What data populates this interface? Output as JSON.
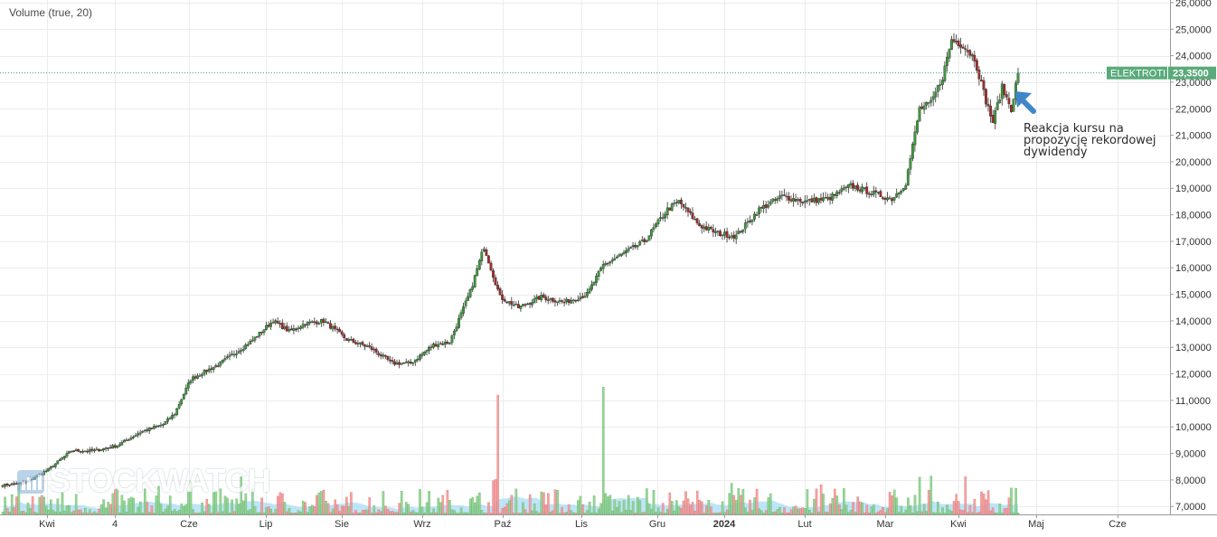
{
  "indicator_label": "Volume (true, 20)",
  "annotation_text": "Reakcja kursu na propozycję rekordowej dywidendy",
  "watermark": "STOCKWATCH",
  "colors": {
    "up": "#3a9c3a",
    "down": "#a62a2a",
    "volume_up": "#8fd18f",
    "volume_down": "#f39a9a",
    "volume_ma": "#a8dcf5",
    "grid": "#ececec",
    "price_line": "#3a9c8a",
    "price_label_bg": "#5aaa7a",
    "arrow": "#3f86c9"
  },
  "chart_data": {
    "type": "candlestick",
    "ticker": "ELEKTROTI",
    "last_price_label": "23,3500",
    "last_price": 23.35,
    "y_axis": {
      "range": [
        6.7,
        26.1
      ],
      "ticks": [
        {
          "value": 26,
          "label": "26,0000"
        },
        {
          "value": 25,
          "label": "25,0000"
        },
        {
          "value": 24,
          "label": "24,0000"
        },
        {
          "value": 23,
          "label": "23,0000"
        },
        {
          "value": 22,
          "label": "22,0000"
        },
        {
          "value": 21,
          "label": "21,0000"
        },
        {
          "value": 20,
          "label": "20,0000"
        },
        {
          "value": 19,
          "label": "19,0000"
        },
        {
          "value": 18,
          "label": "18,0000"
        },
        {
          "value": 17,
          "label": "17,0000"
        },
        {
          "value": 16,
          "label": "16,0000"
        },
        {
          "value": 15,
          "label": "15,0000"
        },
        {
          "value": 14,
          "label": "14,0000"
        },
        {
          "value": 13,
          "label": "13,0000"
        },
        {
          "value": 12,
          "label": "12,0000"
        },
        {
          "value": 11,
          "label": "11,0000"
        },
        {
          "value": 10,
          "label": "10,0000"
        },
        {
          "value": 9,
          "label": "9,0000"
        },
        {
          "value": 8,
          "label": "8,0000"
        },
        {
          "value": 7,
          "label": "7,0000"
        }
      ]
    },
    "x_axis": {
      "ticks": [
        {
          "label": "Kwi",
          "bold": false
        },
        {
          "label": "4",
          "bold": false
        },
        {
          "label": "Cze",
          "bold": false
        },
        {
          "label": "Lip",
          "bold": false
        },
        {
          "label": "Sie",
          "bold": false
        },
        {
          "label": "Wrz",
          "bold": false
        },
        {
          "label": "Paź",
          "bold": false
        },
        {
          "label": "Lis",
          "bold": false
        },
        {
          "label": "Gru",
          "bold": false
        },
        {
          "label": "2024",
          "bold": true
        },
        {
          "label": "Lut",
          "bold": false
        },
        {
          "label": "Mar",
          "bold": false
        },
        {
          "label": "Kwi",
          "bold": false
        },
        {
          "label": "Maj",
          "bold": false
        },
        {
          "label": "Cze",
          "bold": false
        }
      ]
    },
    "close_waypoints": [
      [
        0,
        7.8
      ],
      [
        10,
        7.9
      ],
      [
        20,
        8.4
      ],
      [
        30,
        9.1
      ],
      [
        40,
        9.1
      ],
      [
        50,
        9.3
      ],
      [
        60,
        9.8
      ],
      [
        70,
        10.1
      ],
      [
        75,
        10.5
      ],
      [
        82,
        11.8
      ],
      [
        95,
        12.4
      ],
      [
        108,
        13.2
      ],
      [
        118,
        14.0
      ],
      [
        125,
        13.6
      ],
      [
        132,
        13.9
      ],
      [
        140,
        14.0
      ],
      [
        150,
        13.3
      ],
      [
        160,
        13.0
      ],
      [
        170,
        12.4
      ],
      [
        178,
        12.4
      ],
      [
        188,
        13.1
      ],
      [
        195,
        13.2
      ],
      [
        204,
        15.1
      ],
      [
        210,
        16.8
      ],
      [
        217,
        14.9
      ],
      [
        225,
        14.5
      ],
      [
        235,
        14.9
      ],
      [
        245,
        14.7
      ],
      [
        255,
        15.0
      ],
      [
        262,
        16.1
      ],
      [
        270,
        16.5
      ],
      [
        280,
        17.0
      ],
      [
        290,
        18.2
      ],
      [
        295,
        18.5
      ],
      [
        304,
        17.6
      ],
      [
        312,
        17.3
      ],
      [
        320,
        17.2
      ],
      [
        330,
        18.2
      ],
      [
        340,
        18.7
      ],
      [
        350,
        18.5
      ],
      [
        360,
        18.6
      ],
      [
        370,
        19.1
      ],
      [
        380,
        18.8
      ],
      [
        388,
        18.6
      ],
      [
        394,
        19.2
      ],
      [
        400,
        22.0
      ],
      [
        405,
        22.2
      ],
      [
        410,
        23.2
      ],
      [
        414,
        24.6
      ],
      [
        419,
        24.4
      ],
      [
        424,
        23.9
      ],
      [
        429,
        22.3
      ],
      [
        432,
        21.5
      ],
      [
        436,
        22.8
      ],
      [
        440,
        22.0
      ],
      [
        443,
        23.35
      ]
    ],
    "volume_spikes": [
      {
        "bar": 216,
        "volume": 11.2,
        "direction": "down"
      },
      {
        "bar": 262,
        "volume": 11.5,
        "direction": "up"
      },
      {
        "bar": 400,
        "volume": 8.1,
        "direction": "up"
      },
      {
        "bar": 430,
        "volume": 7.6,
        "direction": "down"
      },
      {
        "bar": 440,
        "volume": 7.7,
        "direction": "up"
      }
    ],
    "grid": true,
    "legend": "none"
  }
}
